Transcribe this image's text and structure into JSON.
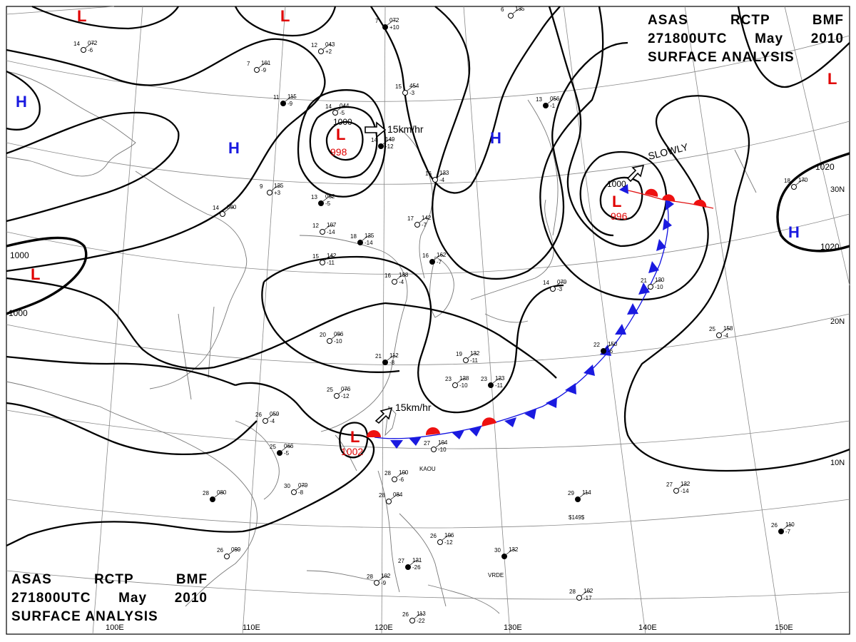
{
  "header": {
    "line1": [
      "ASAS",
      "RCTP",
      "BMF"
    ],
    "line2": [
      "271800UTC",
      "May",
      "2010"
    ],
    "line3": "SURFACE ANALYSIS"
  },
  "longitude_labels": [
    "100E",
    "110E",
    "120E",
    "130E",
    "140E",
    "150E"
  ],
  "latitude_labels": [
    "30N",
    "20N",
    "10N"
  ],
  "isobar_labels": [
    "1000",
    "1000",
    "1000",
    "1000",
    "1020",
    "1020"
  ],
  "systems": [
    {
      "type": "L",
      "pressure": "998"
    },
    {
      "type": "L",
      "pressure": "996"
    },
    {
      "type": "L",
      "pressure": "1002"
    },
    {
      "type": "L",
      "pressure": ""
    },
    {
      "type": "L",
      "pressure": ""
    },
    {
      "type": "L",
      "pressure": ""
    },
    {
      "type": "L",
      "pressure": ""
    },
    {
      "type": "H",
      "pressure": ""
    },
    {
      "type": "H",
      "pressure": ""
    },
    {
      "type": "H",
      "pressure": ""
    },
    {
      "type": "H",
      "pressure": ""
    }
  ],
  "motions": [
    "15km/hr",
    "SLOWLY",
    "15km/hr"
  ],
  "stations": [
    {
      "t": "7",
      "p": "072",
      "d": "+10"
    },
    {
      "t": "14",
      "p": "072",
      "d": "-6"
    },
    {
      "t": "7",
      "p": "101",
      "d": "-9"
    },
    {
      "t": "11",
      "p": "115",
      "d": "-9"
    },
    {
      "t": "15",
      "p": "454",
      "d": "-3"
    },
    {
      "t": "14",
      "p": "044",
      "d": "-5"
    },
    {
      "t": "14",
      "p": "149",
      "d": "-12"
    },
    {
      "t": "16",
      "p": "123",
      "d": "-4"
    },
    {
      "t": "9",
      "p": "125",
      "d": "+3"
    },
    {
      "t": "13",
      "p": "062",
      "d": "-5"
    },
    {
      "t": "14",
      "p": "090",
      "d": ""
    },
    {
      "t": "12",
      "p": "107",
      "d": "-14"
    },
    {
      "t": "18",
      "p": "125",
      "d": "-14"
    },
    {
      "t": "15",
      "p": "142",
      "d": "-11"
    },
    {
      "t": "17",
      "p": "142",
      "d": "-7"
    },
    {
      "t": "16",
      "p": "162",
      "d": "-7"
    },
    {
      "t": "16",
      "p": "138",
      "d": "-4"
    },
    {
      "t": "20",
      "p": "096",
      "d": "-10"
    },
    {
      "t": "21",
      "p": "112",
      "d": "-8"
    },
    {
      "t": "19",
      "p": "132",
      "d": "-11"
    },
    {
      "t": "23",
      "p": "128",
      "d": "-10"
    },
    {
      "t": "23",
      "p": "123",
      "d": "-11"
    },
    {
      "t": "25",
      "p": "076",
      "d": "-12"
    },
    {
      "t": "26",
      "p": "059",
      "d": "-4"
    },
    {
      "t": "25",
      "p": "066",
      "d": "-5"
    },
    {
      "t": "27",
      "p": "104",
      "d": "-10"
    },
    {
      "t": "30",
      "p": "079",
      "d": "-8"
    },
    {
      "t": "28",
      "p": "080",
      "d": ""
    },
    {
      "t": "28",
      "p": "100",
      "d": "-6"
    },
    {
      "t": "28",
      "p": "084",
      "d": ""
    },
    {
      "t": "29",
      "p": "114",
      "d": ""
    },
    {
      "t": "27",
      "p": "122",
      "d": "-14"
    },
    {
      "t": "26",
      "p": "106",
      "d": "-12"
    },
    {
      "t": "30",
      "p": "132",
      "d": ""
    },
    {
      "t": "26",
      "p": "099",
      "d": ""
    },
    {
      "t": "28",
      "p": "102",
      "d": "-9"
    },
    {
      "t": "27",
      "p": "121",
      "d": "-26"
    },
    {
      "t": "26",
      "p": "113",
      "d": "-22"
    },
    {
      "t": "28",
      "p": "102",
      "d": "-17"
    },
    {
      "t": "26",
      "p": "110",
      "d": "-7"
    },
    {
      "t": "25",
      "p": "158",
      "d": "-4"
    },
    {
      "t": "21",
      "p": "120",
      "d": "-10"
    },
    {
      "t": "22",
      "p": "150",
      "d": "-6"
    },
    {
      "t": "18",
      "p": "170",
      "d": ""
    },
    {
      "t": "14",
      "p": "079",
      "d": "-3"
    },
    {
      "t": "13",
      "p": "056",
      "d": "-1"
    },
    {
      "t": "6",
      "p": "135",
      "d": ""
    },
    {
      "t": "12",
      "p": "043",
      "d": "+2"
    }
  ],
  "station_ids": [
    "KAOU",
    "VRDE",
    "$149$"
  ]
}
